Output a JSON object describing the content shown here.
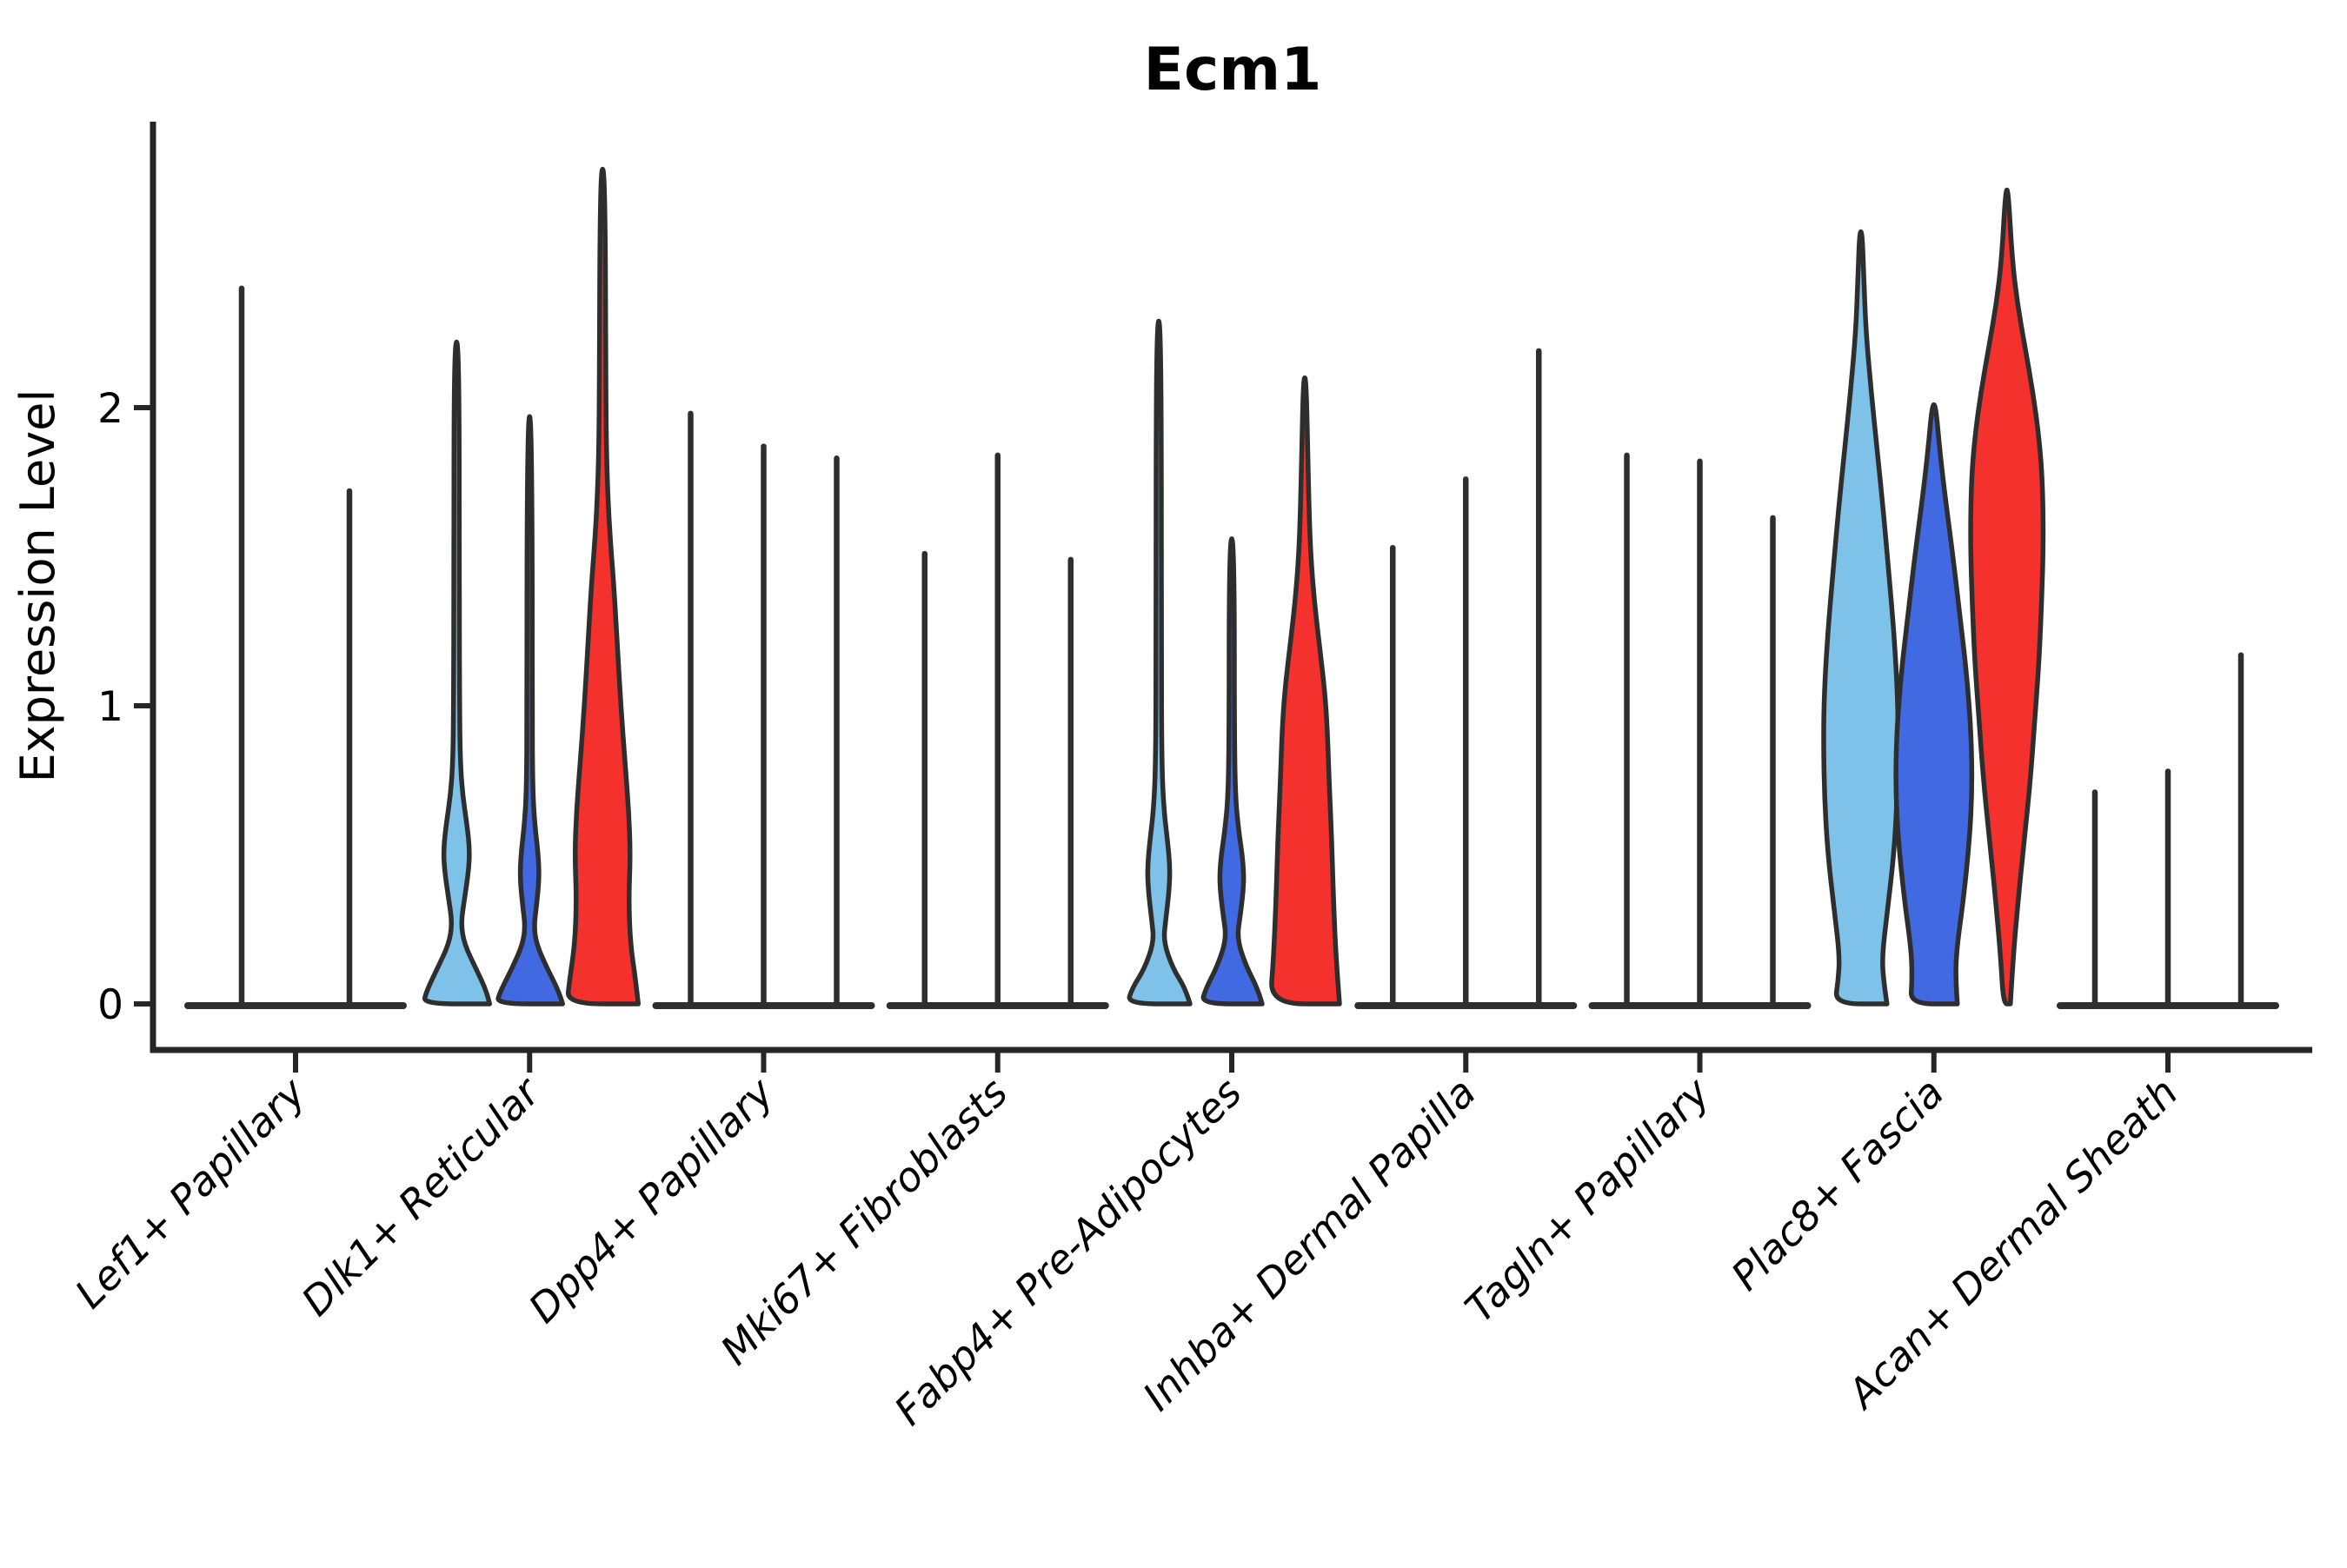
{
  "chart_data": {
    "type": "violin",
    "title": "Ecm1",
    "ylabel": "Expression Level",
    "xlabel": "",
    "ytick_labels": [
      "0",
      "1",
      "2"
    ],
    "ytick_values": [
      0,
      1,
      2
    ],
    "ylim": [
      -0.15,
      2.96
    ],
    "grid": "off",
    "legend": "none",
    "palette": {
      "light_blue": "#7EC2EA",
      "dark_blue": "#4169E1",
      "red": "#F5312D"
    },
    "outline_color": "#2E2E2E",
    "axis_color": "#262626",
    "groups": [
      {
        "category": "Lef1+ Papillary",
        "base": "flat",
        "violins": [
          {
            "kind": "spike",
            "offset": -62,
            "max": 2.4
          },
          {
            "kind": "spike",
            "offset": 62,
            "max": 1.72
          }
        ]
      },
      {
        "category": "Dlk1+ Reticular",
        "base": "none",
        "violins": [
          {
            "kind": "shaped",
            "color": "light_blue",
            "offset": -84,
            "max": 2.22,
            "profile": [
              [
                0,
                38
              ],
              [
                0.04,
                35
              ],
              [
                0.12,
                22
              ],
              [
                0.2,
                9
              ],
              [
                0.27,
                5
              ],
              [
                0.35,
                9
              ],
              [
                0.45,
                14
              ],
              [
                0.52,
                15
              ],
              [
                0.6,
                12
              ],
              [
                0.7,
                7
              ],
              [
                0.8,
                4.5
              ],
              [
                0.95,
                3.5
              ],
              [
                1.5,
                3
              ],
              [
                2.0,
                3
              ],
              [
                2.22,
                1.5
              ]
            ]
          },
          {
            "kind": "shaped",
            "color": "dark_blue",
            "offset": 0,
            "max": 1.97,
            "profile": [
              [
                0,
                38
              ],
              [
                0.04,
                34
              ],
              [
                0.12,
                20
              ],
              [
                0.2,
                8
              ],
              [
                0.26,
                5
              ],
              [
                0.33,
                8
              ],
              [
                0.42,
                11
              ],
              [
                0.5,
                10
              ],
              [
                0.6,
                6
              ],
              [
                0.72,
                3.5
              ],
              [
                1.0,
                3
              ],
              [
                1.6,
                3
              ],
              [
                1.97,
                1.5
              ]
            ]
          },
          {
            "kind": "shaped",
            "color": "red",
            "offset": 84,
            "max": 2.8,
            "profile": [
              [
                0,
                41
              ],
              [
                0.08,
                38
              ],
              [
                0.2,
                32
              ],
              [
                0.35,
                30
              ],
              [
                0.5,
                32
              ],
              [
                0.65,
                30
              ],
              [
                0.8,
                26
              ],
              [
                1.0,
                21
              ],
              [
                1.2,
                17
              ],
              [
                1.4,
                13
              ],
              [
                1.55,
                9
              ],
              [
                1.7,
                6
              ],
              [
                1.9,
                4
              ],
              [
                2.3,
                3.5
              ],
              [
                2.6,
                3
              ],
              [
                2.8,
                1.5
              ]
            ]
          }
        ]
      },
      {
        "category": "Dpp4+ Papillary",
        "base": "flat",
        "violins": [
          {
            "kind": "spike",
            "offset": -84,
            "max": 1.98
          },
          {
            "kind": "spike",
            "offset": 0,
            "max": 1.87
          },
          {
            "kind": "spike",
            "offset": 84,
            "max": 1.83
          }
        ]
      },
      {
        "category": "Mki67+ Fibroblasts",
        "base": "flat",
        "violins": [
          {
            "kind": "spike",
            "offset": -84,
            "max": 1.51
          },
          {
            "kind": "spike",
            "offset": 0,
            "max": 1.84
          },
          {
            "kind": "spike",
            "offset": 84,
            "max": 1.49
          }
        ]
      },
      {
        "category": "Fabp4+ Pre-Adipocytes",
        "base": "none",
        "violins": [
          {
            "kind": "shaped",
            "color": "light_blue",
            "offset": -84,
            "max": 2.29,
            "profile": [
              [
                0,
                36
              ],
              [
                0.05,
                31
              ],
              [
                0.12,
                16
              ],
              [
                0.21,
                5.5
              ],
              [
                0.28,
                8
              ],
              [
                0.38,
                12
              ],
              [
                0.46,
                13
              ],
              [
                0.55,
                10
              ],
              [
                0.65,
                6
              ],
              [
                0.8,
                3.5
              ],
              [
                1.2,
                3
              ],
              [
                2.0,
                3
              ],
              [
                2.29,
                1.5
              ]
            ]
          },
          {
            "kind": "shaped",
            "color": "dark_blue",
            "offset": 0,
            "max": 1.56,
            "profile": [
              [
                0,
                35
              ],
              [
                0.05,
                30
              ],
              [
                0.13,
                16
              ],
              [
                0.22,
                6
              ],
              [
                0.3,
                10
              ],
              [
                0.4,
                14
              ],
              [
                0.48,
                13
              ],
              [
                0.58,
                8
              ],
              [
                0.7,
                4
              ],
              [
                0.95,
                3
              ],
              [
                1.35,
                3
              ],
              [
                1.56,
                1.5
              ]
            ]
          },
          {
            "kind": "shaped",
            "color": "red",
            "offset": 84,
            "max": 2.1,
            "profile": [
              [
                0,
                40
              ],
              [
                0.15,
                36
              ],
              [
                0.35,
                33
              ],
              [
                0.55,
                31
              ],
              [
                0.75,
                28
              ],
              [
                0.92,
                26
              ],
              [
                1.05,
                23
              ],
              [
                1.2,
                17
              ],
              [
                1.35,
                11
              ],
              [
                1.5,
                7
              ],
              [
                1.65,
                5
              ],
              [
                1.85,
                3.5
              ],
              [
                2.1,
                1.5
              ]
            ]
          }
        ]
      },
      {
        "category": "Inhba+ Dermal Papilla",
        "base": "flat",
        "violins": [
          {
            "kind": "spike",
            "offset": -84,
            "max": 1.53
          },
          {
            "kind": "spike",
            "offset": 0,
            "max": 1.76
          },
          {
            "kind": "spike",
            "offset": 84,
            "max": 2.19
          }
        ]
      },
      {
        "category": "Tagln+ Papillary",
        "base": "flat",
        "violins": [
          {
            "kind": "spike",
            "offset": -84,
            "max": 1.84
          },
          {
            "kind": "spike",
            "offset": 0,
            "max": 1.82
          },
          {
            "kind": "spike",
            "offset": 84,
            "max": 1.63
          }
        ]
      },
      {
        "category": "Plac8+ Fascia",
        "base": "none",
        "violins": [
          {
            "kind": "shaped",
            "color": "light_blue",
            "offset": -84,
            "max": 2.59,
            "profile": [
              [
                0,
                30
              ],
              [
                0.08,
                26
              ],
              [
                0.16,
                24.5
              ],
              [
                0.3,
                30
              ],
              [
                0.5,
                38
              ],
              [
                0.7,
                42
              ],
              [
                0.9,
                43
              ],
              [
                1.05,
                42
              ],
              [
                1.25,
                38
              ],
              [
                1.45,
                32
              ],
              [
                1.65,
                26
              ],
              [
                1.85,
                19
              ],
              [
                2.05,
                12
              ],
              [
                2.25,
                6
              ],
              [
                2.42,
                3.5
              ],
              [
                2.59,
                1.5
              ]
            ]
          },
          {
            "kind": "shaped",
            "color": "dark_blue",
            "offset": 0,
            "max": 2.01,
            "profile": [
              [
                0,
                27
              ],
              [
                0.08,
                25
              ],
              [
                0.18,
                26
              ],
              [
                0.35,
                34
              ],
              [
                0.55,
                41
              ],
              [
                0.72,
                44
              ],
              [
                0.9,
                43
              ],
              [
                1.1,
                38
              ],
              [
                1.3,
                30
              ],
              [
                1.5,
                22
              ],
              [
                1.7,
                13
              ],
              [
                1.85,
                7
              ],
              [
                2.01,
                2
              ]
            ]
          },
          {
            "kind": "shaped",
            "color": "red",
            "offset": 84,
            "max": 2.73,
            "profile": [
              [
                0,
                4
              ],
              [
                0.15,
                7
              ],
              [
                0.35,
                13
              ],
              [
                0.55,
                20
              ],
              [
                0.75,
                27
              ],
              [
                0.95,
                32
              ],
              [
                1.15,
                37
              ],
              [
                1.35,
                40
              ],
              [
                1.55,
                42
              ],
              [
                1.75,
                41
              ],
              [
                1.9,
                37
              ],
              [
                2.05,
                30
              ],
              [
                2.2,
                21
              ],
              [
                2.35,
                12
              ],
              [
                2.5,
                6
              ],
              [
                2.73,
                1.5
              ]
            ]
          }
        ]
      },
      {
        "category": "Acan+ Dermal Sheath",
        "base": "flat",
        "violins": [
          {
            "kind": "spike",
            "offset": -84,
            "max": 0.71,
            "points": [
              0.31,
              0.38,
              0.44,
              0.5,
              0.56
            ]
          },
          {
            "kind": "spike",
            "offset": 0,
            "max": 0.78,
            "points": [
              0.2,
              0.27,
              0.34,
              0.41,
              0.48,
              0.55
            ]
          },
          {
            "kind": "spike",
            "offset": 84,
            "max": 1.17,
            "points": [
              0.25,
              0.38,
              0.52
            ]
          }
        ]
      }
    ]
  }
}
